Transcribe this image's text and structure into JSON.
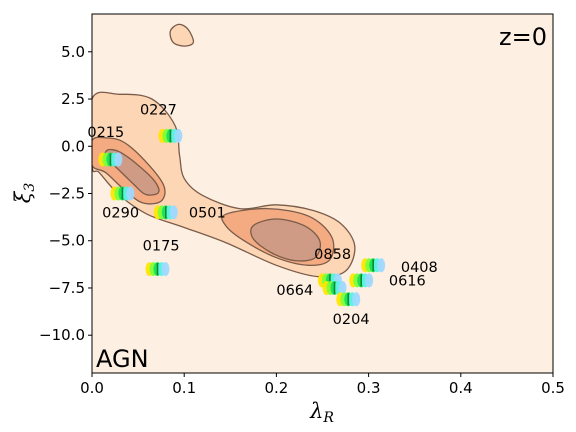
{
  "chart_data": {
    "type": "contour",
    "xlabel": "λ",
    "xlabel_sub": "R",
    "ylabel": "ξ",
    "ylabel_sub": "3",
    "xlim": [
      0.0,
      0.5
    ],
    "ylim": [
      -12.0,
      7.0
    ],
    "xticks": [
      0.0,
      0.1,
      0.2,
      0.3,
      0.4,
      0.5
    ],
    "xtick_labels": [
      "0.0",
      "0.1",
      "0.2",
      "0.3",
      "0.4",
      "0.5"
    ],
    "yticks": [
      5.0,
      2.5,
      0.0,
      -2.5,
      -5.0,
      -7.5,
      -10.0
    ],
    "ytick_labels": [
      "5.0",
      "2.5",
      "0.0",
      "−2.5",
      "−5.0",
      "−7.5",
      "−10.0"
    ],
    "corner_label_top_right": "z=0",
    "corner_label_bottom_left": "AGN",
    "colors": {
      "background": "#fdefe2",
      "level1": "#fdd6b5",
      "level2": "#f4ab82",
      "level3": "#cf9b85",
      "edge": "#7a5c4a"
    },
    "contours": [
      {
        "level": 1,
        "polygons": [
          [
            [
              0.0,
              2.5
            ],
            [
              0.03,
              2.75
            ],
            [
              0.065,
              2.5
            ],
            [
              0.09,
              1.1
            ],
            [
              0.095,
              -0.5
            ],
            [
              0.1,
              -1.7
            ],
            [
              0.12,
              -2.6
            ],
            [
              0.16,
              -3.3
            ],
            [
              0.2,
              -3.1
            ],
            [
              0.24,
              -3.4
            ],
            [
              0.27,
              -4.1
            ],
            [
              0.285,
              -5.3
            ],
            [
              0.275,
              -6.6
            ],
            [
              0.245,
              -6.9
            ],
            [
              0.2,
              -6.3
            ],
            [
              0.145,
              -5.1
            ],
            [
              0.1,
              -4.3
            ],
            [
              0.06,
              -3.6
            ],
            [
              0.03,
              -2.6
            ],
            [
              0.008,
              -1.4
            ],
            [
              0.0,
              -1.0
            ]
          ],
          [
            [
              0.085,
              6.1
            ],
            [
              0.094,
              6.45
            ],
            [
              0.104,
              6.2
            ],
            [
              0.11,
              5.5
            ],
            [
              0.1,
              5.3
            ],
            [
              0.088,
              5.5
            ]
          ]
        ]
      },
      {
        "level": 2,
        "polygons": [
          [
            [
              0.0,
              0.3
            ],
            [
              0.015,
              0.45
            ],
            [
              0.035,
              0.2
            ],
            [
              0.06,
              -0.9
            ],
            [
              0.078,
              -2.1
            ],
            [
              0.075,
              -2.9
            ],
            [
              0.055,
              -3.0
            ],
            [
              0.035,
              -2.3
            ],
            [
              0.015,
              -1.4
            ],
            [
              0.0,
              -1.0
            ]
          ],
          [
            [
              0.145,
              -3.6
            ],
            [
              0.19,
              -3.3
            ],
            [
              0.235,
              -3.7
            ],
            [
              0.26,
              -4.8
            ],
            [
              0.258,
              -6.0
            ],
            [
              0.235,
              -6.3
            ],
            [
              0.2,
              -5.9
            ],
            [
              0.165,
              -5.0
            ],
            [
              0.145,
              -4.2
            ]
          ]
        ]
      },
      {
        "level": 3,
        "polygons": [
          [
            [
              0.017,
              -0.2
            ],
            [
              0.03,
              -0.3
            ],
            [
              0.05,
              -1.0
            ],
            [
              0.068,
              -1.85
            ],
            [
              0.072,
              -2.45
            ],
            [
              0.058,
              -2.55
            ],
            [
              0.045,
              -2.0
            ],
            [
              0.028,
              -1.2
            ],
            [
              0.015,
              -0.6
            ]
          ],
          [
            [
              0.175,
              -4.2
            ],
            [
              0.2,
              -3.85
            ],
            [
              0.23,
              -4.2
            ],
            [
              0.247,
              -5.0
            ],
            [
              0.242,
              -5.9
            ],
            [
              0.22,
              -6.05
            ],
            [
              0.195,
              -5.65
            ],
            [
              0.175,
              -4.9
            ]
          ]
        ]
      }
    ],
    "objects": [
      {
        "id": "0227",
        "x": 0.085,
        "y": 0.55
      },
      {
        "id": "0215",
        "x": 0.02,
        "y": -0.7
      },
      {
        "id": "0290",
        "x": 0.033,
        "y": -2.5
      },
      {
        "id": "0501",
        "x": 0.08,
        "y": -3.5
      },
      {
        "id": "0175",
        "x": 0.071,
        "y": -6.5
      },
      {
        "id": "0858",
        "x": 0.258,
        "y": -7.1
      },
      {
        "id": "0664",
        "x": 0.263,
        "y": -7.5
      },
      {
        "id": "0408",
        "x": 0.305,
        "y": -6.3
      },
      {
        "id": "0616",
        "x": 0.292,
        "y": -7.1
      },
      {
        "id": "0204",
        "x": 0.278,
        "y": -8.1
      }
    ],
    "object_labels": [
      {
        "text": "0227",
        "x": 0.072,
        "y": 1.9
      },
      {
        "text": "0215",
        "x": 0.015,
        "y": 0.7
      },
      {
        "text": "0290",
        "x": 0.031,
        "y": -3.55
      },
      {
        "text": "0501",
        "x": 0.125,
        "y": -3.55
      },
      {
        "text": "0175",
        "x": 0.075,
        "y": -5.3
      },
      {
        "text": "0858",
        "x": 0.261,
        "y": -5.75
      },
      {
        "text": "0664",
        "x": 0.22,
        "y": -7.65
      },
      {
        "text": "0408",
        "x": 0.355,
        "y": -6.45
      },
      {
        "text": "0616",
        "x": 0.342,
        "y": -7.15
      },
      {
        "text": "0204",
        "x": 0.281,
        "y": -9.2
      }
    ],
    "grid": false,
    "legend": "none"
  }
}
